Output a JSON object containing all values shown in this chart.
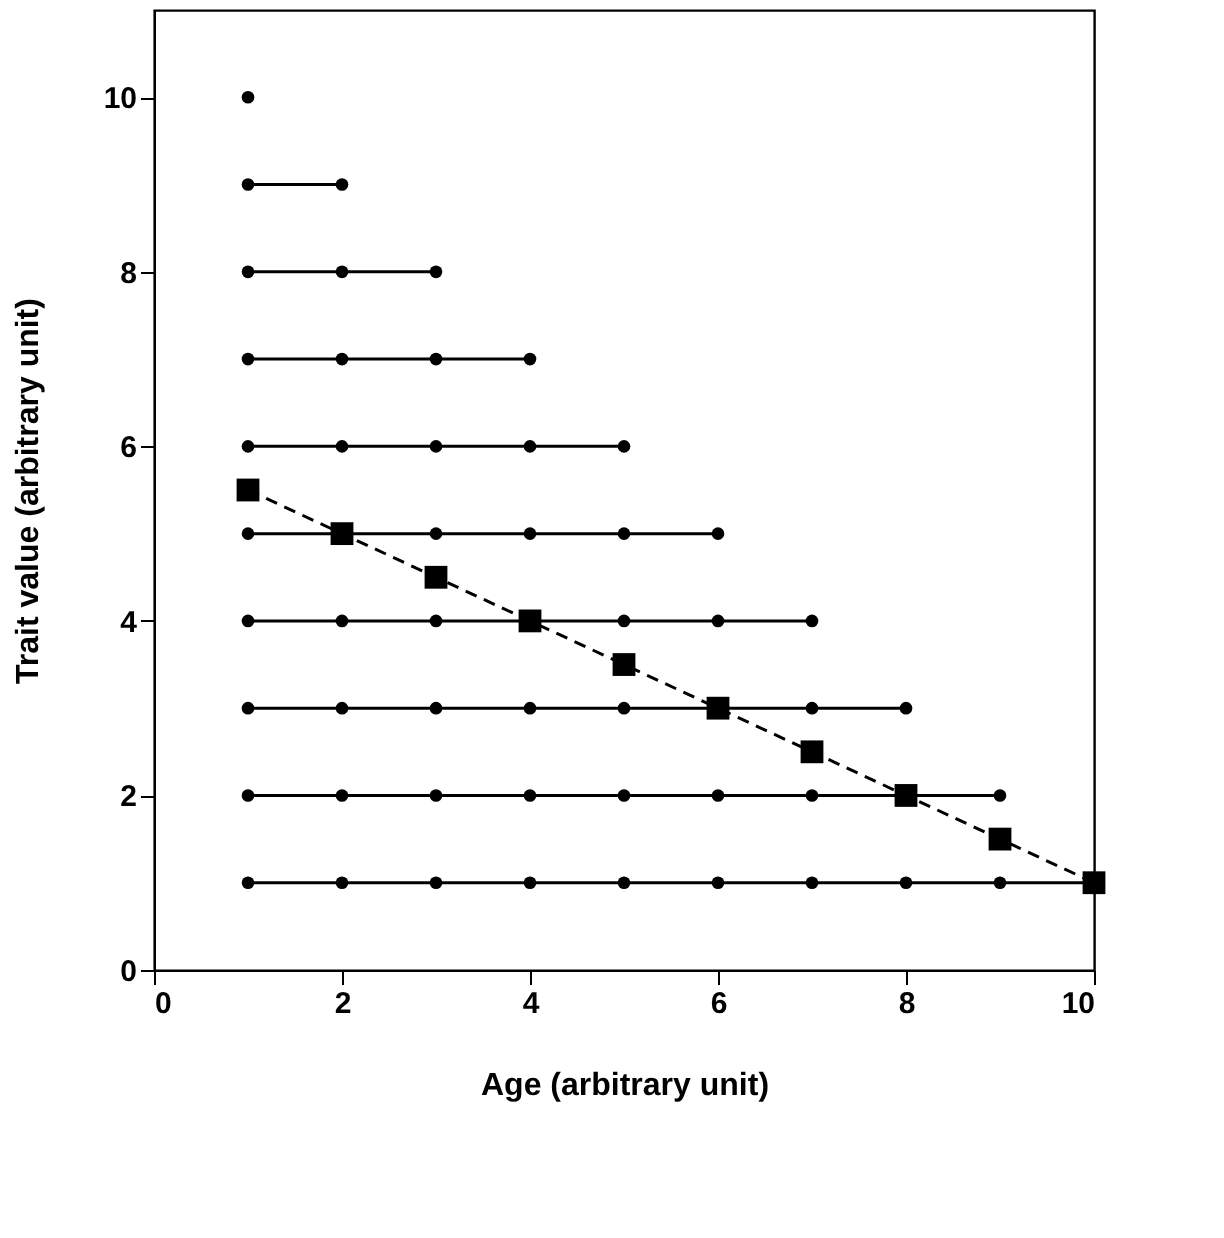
{
  "chart_data": {
    "type": "line",
    "xlabel": "Age (arbitrary unit)",
    "ylabel": "Trait value (arbitrary unit)",
    "xlim": [
      0,
      10
    ],
    "ylim": [
      0,
      11
    ],
    "xticks": [
      0,
      2,
      4,
      6,
      8,
      10
    ],
    "yticks": [
      0,
      2,
      4,
      6,
      8,
      10
    ],
    "grid": false,
    "series": [
      {
        "type": "line",
        "color": "#000000",
        "marker": "circle",
        "line_style": "solid",
        "x": [
          1
        ],
        "values": [
          10
        ]
      },
      {
        "type": "line",
        "color": "#000000",
        "marker": "circle",
        "line_style": "solid",
        "x": [
          1,
          2
        ],
        "values": [
          9,
          9
        ]
      },
      {
        "type": "line",
        "color": "#000000",
        "marker": "circle",
        "line_style": "solid",
        "x": [
          1,
          2,
          3
        ],
        "values": [
          8,
          8,
          8
        ]
      },
      {
        "type": "line",
        "color": "#000000",
        "marker": "circle",
        "line_style": "solid",
        "x": [
          1,
          2,
          3,
          4
        ],
        "values": [
          7,
          7,
          7,
          7
        ]
      },
      {
        "type": "line",
        "color": "#000000",
        "marker": "circle",
        "line_style": "solid",
        "x": [
          1,
          2,
          3,
          4,
          5
        ],
        "values": [
          6,
          6,
          6,
          6,
          6
        ]
      },
      {
        "type": "line",
        "color": "#000000",
        "marker": "circle",
        "line_style": "solid",
        "x": [
          1,
          2,
          3,
          4,
          5,
          6
        ],
        "values": [
          5,
          5,
          5,
          5,
          5,
          5
        ]
      },
      {
        "type": "line",
        "color": "#000000",
        "marker": "circle",
        "line_style": "solid",
        "x": [
          1,
          2,
          3,
          4,
          5,
          6,
          7
        ],
        "values": [
          4,
          4,
          4,
          4,
          4,
          4,
          4
        ]
      },
      {
        "type": "line",
        "color": "#000000",
        "marker": "circle",
        "line_style": "solid",
        "x": [
          1,
          2,
          3,
          4,
          5,
          6,
          7,
          8
        ],
        "values": [
          3,
          3,
          3,
          3,
          3,
          3,
          3,
          3
        ]
      },
      {
        "type": "line",
        "color": "#000000",
        "marker": "circle",
        "line_style": "solid",
        "x": [
          1,
          2,
          3,
          4,
          5,
          6,
          7,
          8,
          9
        ],
        "values": [
          2,
          2,
          2,
          2,
          2,
          2,
          2,
          2,
          2
        ]
      },
      {
        "type": "line",
        "color": "#000000",
        "marker": "circle",
        "line_style": "solid",
        "x": [
          1,
          2,
          3,
          4,
          5,
          6,
          7,
          8,
          9,
          10
        ],
        "values": [
          1,
          1,
          1,
          1,
          1,
          1,
          1,
          1,
          1,
          1
        ]
      },
      {
        "color": "#000000",
        "marker": "square",
        "line_style": "dashed",
        "x": [
          1,
          2,
          3,
          4,
          5,
          6,
          7,
          8,
          9,
          10
        ],
        "values": [
          5.5,
          5,
          4.5,
          4,
          3.5,
          3,
          2.5,
          2,
          1.5,
          1
        ]
      }
    ]
  }
}
